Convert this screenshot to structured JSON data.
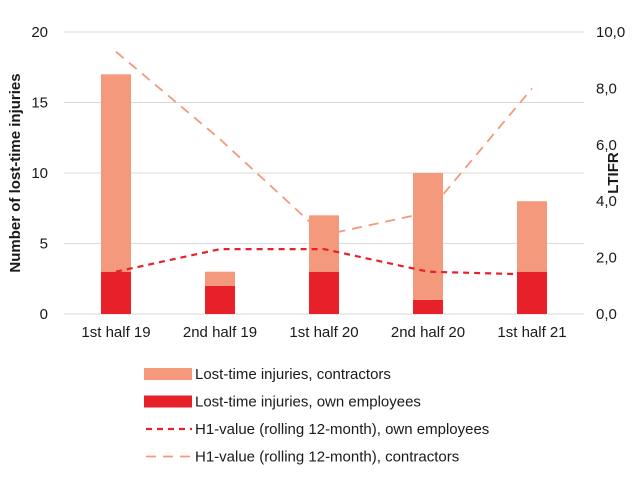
{
  "chart_data": {
    "type": "bar",
    "categories": [
      "1st half 19",
      "2nd half 19",
      "1st half 20",
      "2nd half 20",
      "1st half 21"
    ],
    "stacked": true,
    "series": [
      {
        "name": "Lost-time injuries, own employees",
        "kind": "bar",
        "axis": "left",
        "color": "#e8202a",
        "values": [
          3,
          2,
          3,
          1,
          3
        ]
      },
      {
        "name": "Lost-time injuries, contractors",
        "kind": "bar",
        "axis": "left",
        "color": "#f4997b",
        "values": [
          14,
          1,
          4,
          9,
          5
        ]
      },
      {
        "name": "H1-value (rolling 12-month), own employees",
        "kind": "line",
        "axis": "right",
        "color": "#e8202a",
        "dash": "short",
        "values": [
          1.5,
          2.3,
          2.3,
          1.5,
          1.4
        ]
      },
      {
        "name": "H1-value (rolling 12-month), contractors",
        "kind": "line",
        "axis": "right",
        "color": "#f4997b",
        "dash": "long",
        "values": [
          9.3,
          6.2,
          2.8,
          3.6,
          8.0
        ]
      }
    ],
    "ylabel": "Number of lost-time injuries",
    "y2label": "LTIFR",
    "ylim": [
      0,
      20
    ],
    "y2lim": [
      0,
      10
    ],
    "yticks": [
      "0",
      "5",
      "10",
      "15",
      "20"
    ],
    "y2ticks": [
      "0,0",
      "2,0",
      "4,0",
      "6,0",
      "8,0",
      "10,0"
    ],
    "grid": true,
    "legend_position": "bottom",
    "legend_order": [
      "Lost-time injuries, contractors",
      "Lost-time injuries, own employees",
      "H1-value (rolling 12-month), own employees",
      "H1-value (rolling 12-month), contractors"
    ]
  }
}
